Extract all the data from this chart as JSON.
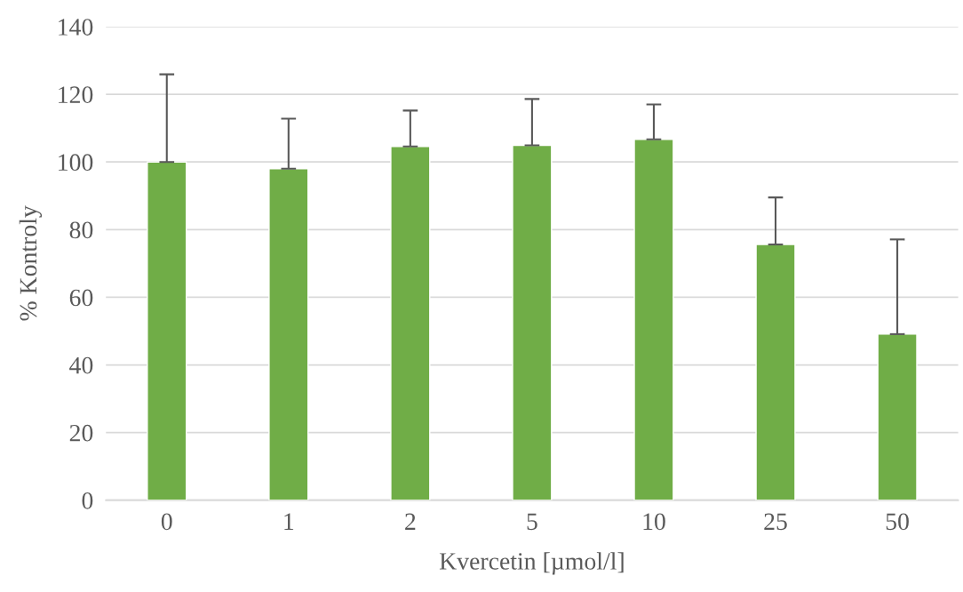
{
  "chart_data": {
    "type": "bar",
    "xlabel": "Kvercetin [µmol/l]",
    "ylabel": "% Kontroly",
    "categories": [
      "0",
      "1",
      "2",
      "5",
      "10",
      "25",
      "50"
    ],
    "series": [
      {
        "color": "#70ad47",
        "values": [
          100,
          98.0,
          104.6,
          104.9,
          106.7,
          75.6,
          49.1
        ],
        "errors": [
          [
            100,
            125.9
          ],
          [
            98.0,
            112.8
          ],
          [
            104.6,
            115.2
          ],
          [
            104.9,
            118.6
          ],
          [
            106.7,
            117.0
          ],
          [
            75.6,
            89.5
          ],
          [
            49.1,
            77.1
          ]
        ]
      }
    ],
    "ylim": [
      0,
      140
    ],
    "yticks": [
      0,
      20,
      40,
      60,
      80,
      100,
      120,
      140
    ],
    "grid": "y"
  }
}
